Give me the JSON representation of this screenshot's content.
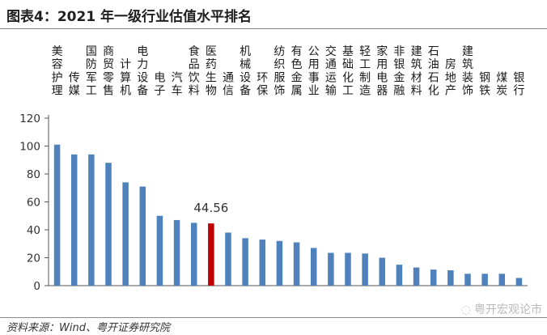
{
  "figure": {
    "title": "图表4：2021 年一级行业估值水平排名",
    "source": "资料来源：Wind、粤开证券研究院",
    "watermark": "粤开宏观论市"
  },
  "chart_data": {
    "type": "bar",
    "title": "",
    "xlabel": "",
    "ylabel": "",
    "ylim": [
      0,
      120
    ],
    "yticks": [
      0,
      20,
      40,
      60,
      80,
      100,
      120
    ],
    "grid": false,
    "legend": "none",
    "categories": [
      "美容护理",
      "传媒",
      "国防军工",
      "商贸零售",
      "计算机",
      "电力设备",
      "电子",
      "汽车",
      "食品饮料",
      "医药生物",
      "通信",
      "机械设备",
      "环保",
      "纺织服饰",
      "有色金属",
      "公用事业",
      "交通运输",
      "基础化工",
      "轻工制造",
      "家用电器",
      "非银金融",
      "建筑材料",
      "石油石化",
      "房地产",
      "建筑装饰",
      "钢铁",
      "煤炭",
      "银行"
    ],
    "series": [
      {
        "values": [
          101,
          94,
          94,
          88,
          74,
          71,
          50,
          47,
          45,
          44.56,
          38,
          34,
          33,
          32,
          31,
          27,
          23.5,
          23.5,
          23,
          20,
          15,
          13,
          11.5,
          11,
          8.5,
          8.5,
          8.5,
          5.5
        ]
      }
    ],
    "highlight": {
      "index": 9,
      "label": "44.56"
    },
    "colors": {
      "bar": "#4f81bd",
      "highlight": "#c00000",
      "axis": "#555555"
    }
  }
}
